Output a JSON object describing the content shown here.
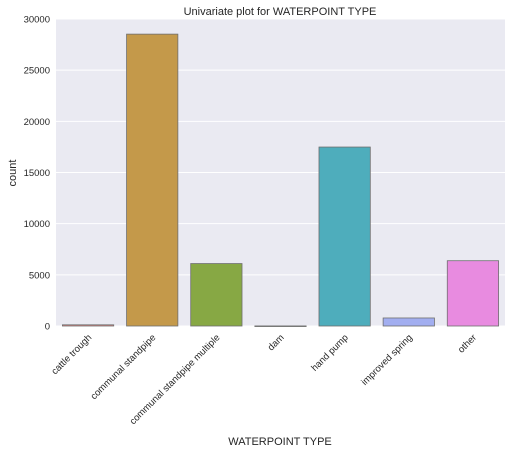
{
  "chart_data": {
    "type": "bar",
    "title": "Univariate plot for WATERPOINT TYPE",
    "xlabel": "WATERPOINT TYPE",
    "ylabel": "count",
    "categories": [
      "cattle trough",
      "communal standpipe",
      "communal standpipe multiple",
      "dam",
      "hand pump",
      "improved spring",
      "other"
    ],
    "values": [
      116,
      28522,
      6103,
      7,
      17488,
      784,
      6380
    ],
    "colors": [
      "#e8837f",
      "#c4994a",
      "#87a844",
      "#4fb07e",
      "#4eadbc",
      "#a2aef0",
      "#e88be0"
    ],
    "ylim": [
      0,
      30000
    ],
    "yticks": [
      0,
      5000,
      10000,
      15000,
      20000,
      25000,
      30000
    ],
    "grid": true,
    "background": "#eaeaf2",
    "legend": "none"
  }
}
